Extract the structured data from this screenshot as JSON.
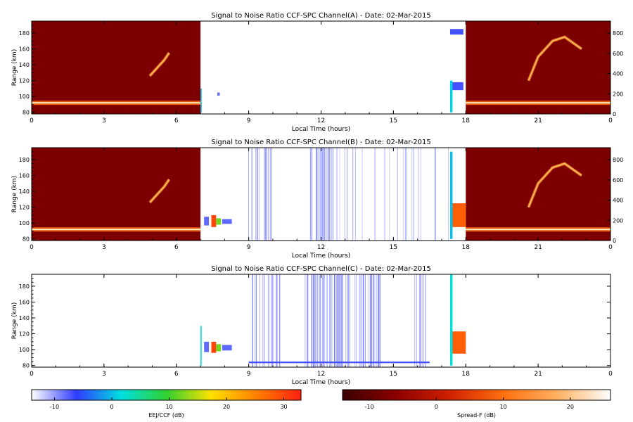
{
  "chart_data": [
    {
      "type": "heatmap",
      "title": "Signal to Noise Ratio CCF-SPC Channel(A) - Date: 02-Mar-2015",
      "xlabel": "Local Time (hours)",
      "ylabel": "Range (km)",
      "x_ticks": [
        "0",
        "3",
        "6",
        "9",
        "12",
        "15",
        "18",
        "21",
        "0"
      ],
      "y_ticks": [
        "80",
        "100",
        "120",
        "140",
        "160",
        "180"
      ],
      "y2_ticks": [
        "0",
        "200",
        "400",
        "600",
        "800"
      ],
      "xlim": [
        0,
        24
      ],
      "ylim": [
        78,
        195
      ],
      "y2lim": [
        0,
        920
      ],
      "ionosonde_blocks": [
        {
          "x0": 0,
          "x1": 7,
          "bg": "#7d0000",
          "features": [
            {
              "kind": "band",
              "x0": 0,
              "x1": 7,
              "y": 92
            },
            {
              "kind": "trace",
              "points": [
                [
                  4.9,
                  126
                ],
                [
                  5.2,
                  136
                ],
                [
                  5.5,
                  146
                ],
                [
                  5.7,
                  155
                ]
              ]
            }
          ]
        },
        {
          "x0": 18,
          "x1": 24,
          "bg": "#7d0000",
          "features": [
            {
              "kind": "band",
              "x0": 18,
              "x1": 24,
              "y": 92
            },
            {
              "kind": "trace",
              "points": [
                [
                  20.6,
                  120
                ],
                [
                  21,
                  150
                ],
                [
                  21.6,
                  170
                ],
                [
                  22.1,
                  175
                ],
                [
                  22.8,
                  160
                ]
              ]
            }
          ]
        }
      ],
      "echoes": [
        {
          "x0": 7.0,
          "x1": 7.05,
          "y0": 80,
          "y1": 110,
          "snr": 0
        },
        {
          "x0": 7.7,
          "x1": 7.8,
          "y0": 101,
          "y1": 105,
          "snr": -8
        },
        {
          "x0": 17.35,
          "x1": 17.9,
          "y0": 178,
          "y1": 185,
          "snr": -7
        },
        {
          "x0": 17.35,
          "x1": 17.9,
          "y0": 108,
          "y1": 118,
          "snr": -7
        },
        {
          "x0": 17.35,
          "x1": 17.45,
          "y0": 80,
          "y1": 120,
          "snr": 1
        }
      ],
      "noise_columns": []
    },
    {
      "type": "heatmap",
      "title": "Signal to Noise Ratio CCF-SPC Channel(B) - Date: 02-Mar-2015",
      "xlabel": "Local Time (hours)",
      "ylabel": "Range (km)",
      "x_ticks": [
        "0",
        "3",
        "6",
        "9",
        "12",
        "15",
        "18",
        "21",
        "0"
      ],
      "y_ticks": [
        "80",
        "100",
        "120",
        "140",
        "160",
        "180"
      ],
      "y2_ticks": [
        "0",
        "200",
        "400",
        "600",
        "800"
      ],
      "xlim": [
        0,
        24
      ],
      "ylim": [
        78,
        195
      ],
      "y2lim": [
        0,
        920
      ],
      "ionosonde_blocks": [
        {
          "x0": 0,
          "x1": 7,
          "bg": "#7d0000",
          "features": [
            {
              "kind": "band",
              "x0": 0,
              "x1": 7,
              "y": 92
            },
            {
              "kind": "trace",
              "points": [
                [
                  4.9,
                  126
                ],
                [
                  5.2,
                  136
                ],
                [
                  5.5,
                  146
                ],
                [
                  5.7,
                  155
                ]
              ]
            }
          ]
        },
        {
          "x0": 18,
          "x1": 24,
          "bg": "#7d0000",
          "features": [
            {
              "kind": "band",
              "x0": 18,
              "x1": 24,
              "y": 92
            },
            {
              "kind": "trace",
              "points": [
                [
                  20.6,
                  120
                ],
                [
                  21,
                  150
                ],
                [
                  21.6,
                  170
                ],
                [
                  22.1,
                  175
                ],
                [
                  22.8,
                  160
                ]
              ]
            }
          ]
        }
      ],
      "echoes": [
        {
          "x0": 7.15,
          "x1": 7.35,
          "y0": 97,
          "y1": 108,
          "snr": -8
        },
        {
          "x0": 7.45,
          "x1": 7.65,
          "y0": 95,
          "y1": 110,
          "snr": 30
        },
        {
          "x0": 7.65,
          "x1": 7.85,
          "y0": 98,
          "y1": 106,
          "snr": 12
        },
        {
          "x0": 7.9,
          "x1": 8.3,
          "y0": 99,
          "y1": 105,
          "snr": -8
        },
        {
          "x0": 17.35,
          "x1": 18.0,
          "y0": 95,
          "y1": 125,
          "snr": 28
        },
        {
          "x0": 17.35,
          "x1": 17.45,
          "y0": 80,
          "y1": 190,
          "snr": 0
        }
      ],
      "noise_columns": [
        {
          "x0": 9.0,
          "x1": 10.0,
          "density": 0.55
        },
        {
          "x0": 11.5,
          "x1": 12.4,
          "density": 0.8
        },
        {
          "x0": 12.4,
          "x1": 17.3,
          "density": 0.15
        }
      ]
    },
    {
      "type": "heatmap",
      "title": "Signal to Noise Ratio CCF-SPC Channel(C) - Date: 02-Mar-2015",
      "xlabel": "Local Time (hours)",
      "ylabel": "Range (km)",
      "x_ticks": [
        "0",
        "3",
        "6",
        "9",
        "12",
        "15",
        "18",
        "21",
        "0"
      ],
      "y_ticks": [
        "80",
        "100",
        "120",
        "140",
        "160",
        "180"
      ],
      "y2_ticks": [],
      "xlim": [
        0,
        24
      ],
      "ylim": [
        78,
        195
      ],
      "y2lim": null,
      "ionosonde_blocks": [],
      "echoes": [
        {
          "x0": 7.0,
          "x1": 7.05,
          "y0": 80,
          "y1": 130,
          "snr": 2
        },
        {
          "x0": 7.15,
          "x1": 7.35,
          "y0": 97,
          "y1": 110,
          "snr": -8
        },
        {
          "x0": 7.45,
          "x1": 7.65,
          "y0": 96,
          "y1": 110,
          "snr": 30
        },
        {
          "x0": 7.65,
          "x1": 7.85,
          "y0": 98,
          "y1": 107,
          "snr": 12
        },
        {
          "x0": 7.9,
          "x1": 8.3,
          "y0": 99,
          "y1": 106,
          "snr": -8
        },
        {
          "x0": 9.0,
          "x1": 16.5,
          "y0": 83,
          "y1": 85,
          "snr": -7
        },
        {
          "x0": 17.35,
          "x1": 18.0,
          "y0": 95,
          "y1": 123,
          "snr": 28
        },
        {
          "x0": 17.35,
          "x1": 17.45,
          "y0": 80,
          "y1": 195,
          "snr": 2
        }
      ],
      "noise_columns": [
        {
          "x0": 9.0,
          "x1": 10.3,
          "density": 0.5
        },
        {
          "x0": 11.3,
          "x1": 13.2,
          "density": 0.85
        },
        {
          "x0": 13.4,
          "x1": 14.5,
          "density": 0.8
        },
        {
          "x0": 14.5,
          "x1": 16.5,
          "density": 0.15
        }
      ]
    }
  ],
  "colorbars": [
    {
      "label": "EEJ/CCF (dB)",
      "ticks": [
        "-10",
        "0",
        "10",
        "20",
        "30"
      ],
      "range": [
        -14,
        33
      ],
      "colors": [
        "#ffffff",
        "#2f3bff",
        "#00e0e0",
        "#30d030",
        "#ffe000",
        "#ff8000",
        "#ff2010"
      ]
    },
    {
      "label": "Spread-F (dB)",
      "ticks": [
        "-10",
        "0",
        "10",
        "20"
      ],
      "range": [
        -14,
        26
      ],
      "colors": [
        "#3a0000",
        "#8c0000",
        "#d02000",
        "#ff7010",
        "#ffb060",
        "#ffffff"
      ]
    }
  ]
}
